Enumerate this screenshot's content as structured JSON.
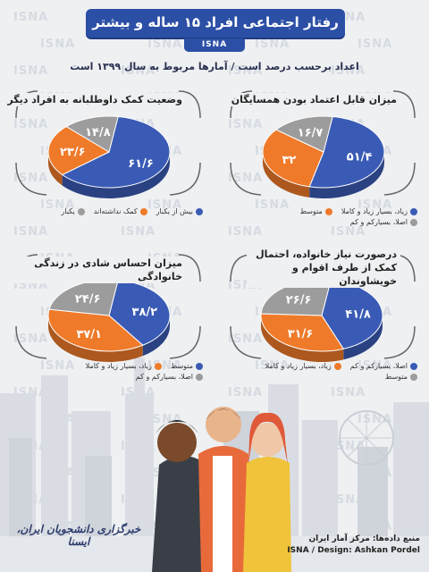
{
  "header": {
    "title": "رفتار اجتماعی افراد ۱۵ ساله و بیشتر",
    "brand": "ISNA",
    "subtitle": "اعداد برحسب درصد است   /   آمارها مربوط به سال ۱۳۹۹ است"
  },
  "watermark": "ISNA",
  "colors": {
    "blue": "#3a5bb5",
    "orange": "#ef7a2a",
    "gray": "#9c9c9c"
  },
  "chart_data": [
    {
      "type": "pie",
      "title": "میزان قابل اعتماد بودن همسایگان",
      "slices": [
        {
          "label": "زیاد، بسیار زیاد و کاملا",
          "value": 51.4,
          "display": "۵۱/۴",
          "color": "#3a5bb5"
        },
        {
          "label": "متوسط",
          "value": 32,
          "display": "۳۲",
          "color": "#ef7a2a"
        },
        {
          "label": "اصلا، بسیارکم و کم",
          "value": 16.7,
          "display": "۱۶/۷",
          "color": "#9c9c9c"
        }
      ]
    },
    {
      "type": "pie",
      "title": "وضعیت کمک داوطلبانه به افراد دیگر",
      "slices": [
        {
          "label": "بیش از یکبار",
          "value": 61.6,
          "display": "۶۱/۶",
          "color": "#3a5bb5"
        },
        {
          "label": "کمک نداشته‌اند",
          "value": 23.6,
          "display": "۲۳/۶",
          "color": "#ef7a2a"
        },
        {
          "label": "یکبار",
          "value": 14.8,
          "display": "۱۴/۸",
          "color": "#9c9c9c"
        }
      ]
    },
    {
      "type": "pie",
      "title": "درصورت نیاز خانواده، احتمال کمک از طرف اقوام و خویشاوندان",
      "slices": [
        {
          "label": "اصلا، بسیارکم و کم",
          "value": 41.8,
          "display": "۴۱/۸",
          "color": "#3a5bb5"
        },
        {
          "label": "زیاد، بسیار زیاد و کاملا",
          "value": 31.6,
          "display": "۳۱/۶",
          "color": "#ef7a2a"
        },
        {
          "label": "متوسط",
          "value": 26.6,
          "display": "۲۶/۶",
          "color": "#9c9c9c"
        }
      ]
    },
    {
      "type": "pie",
      "title": "میزان احساس شادی در زندگی خانوادگی",
      "slices": [
        {
          "label": "متوسط",
          "value": 38.2,
          "display": "۳۸/۲",
          "color": "#3a5bb5"
        },
        {
          "label": "زیاد، بسیار زیاد و کاملا",
          "value": 37.1,
          "display": "۳۷/۱",
          "color": "#ef7a2a"
        },
        {
          "label": "اصلا، بسیارکم و کم",
          "value": 24.6,
          "display": "۲۴/۶",
          "color": "#9c9c9c"
        }
      ]
    }
  ],
  "footer": {
    "source": "منبع داده‌ها: مرکز آمار ایران",
    "credit": "ISNA / Design: Ashkan Pordel",
    "logo_text": "خبرگزاری دانشجویان ایران، ایسنا"
  }
}
